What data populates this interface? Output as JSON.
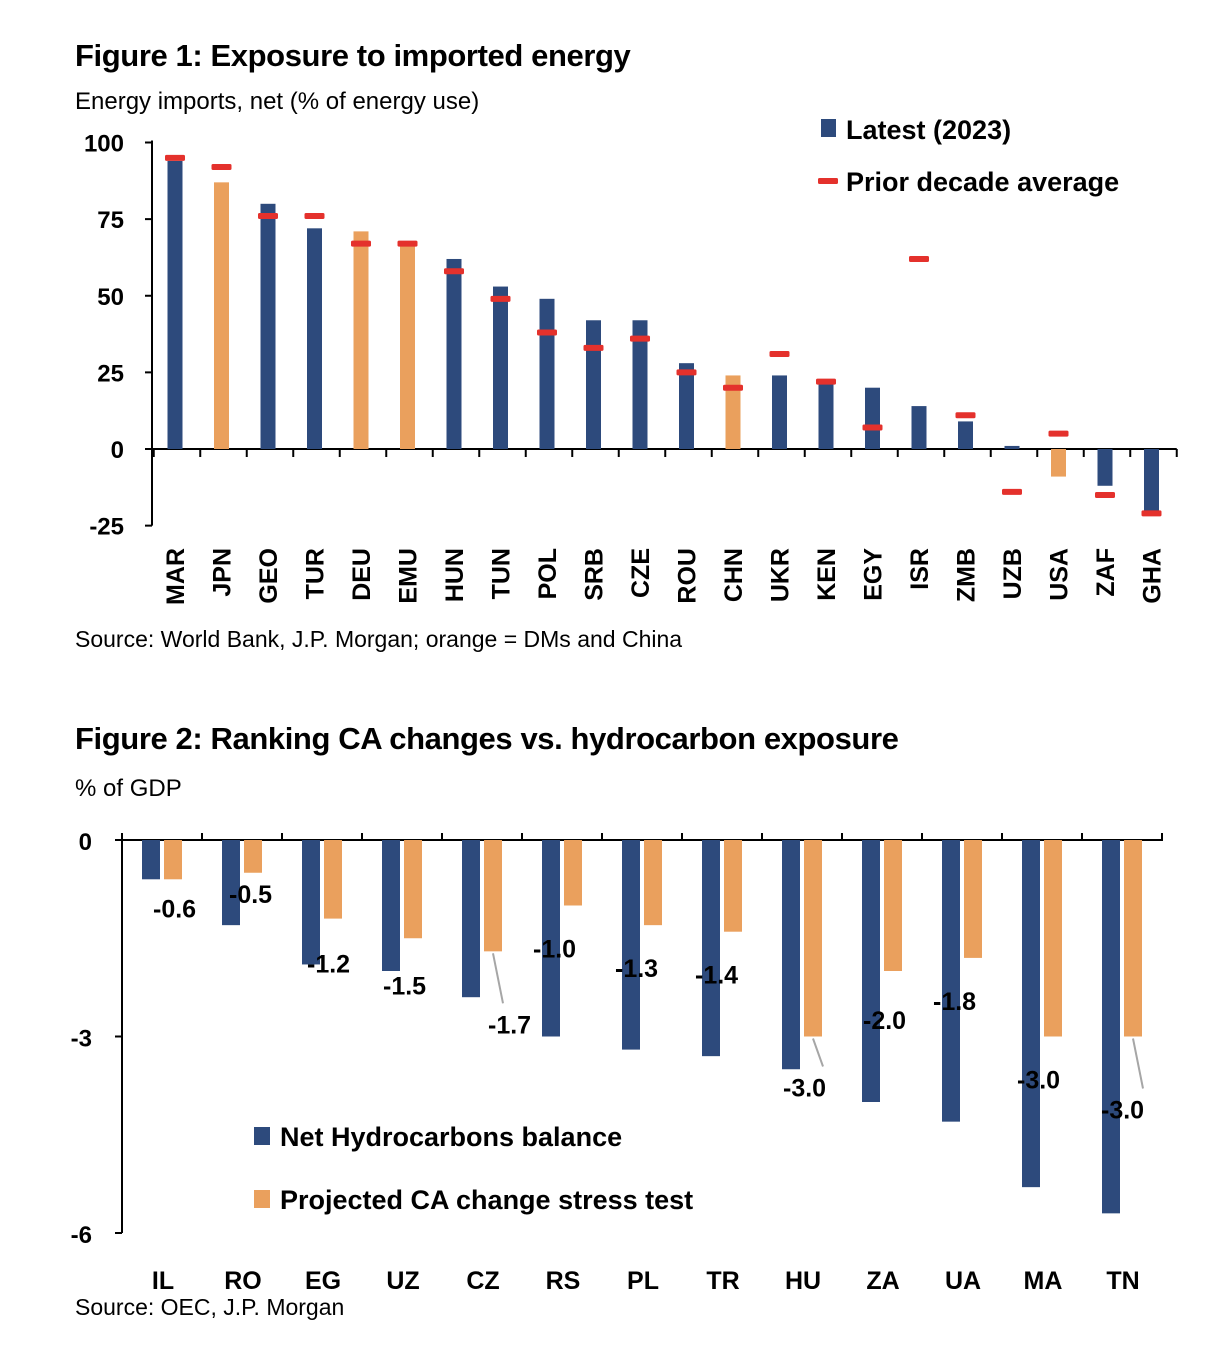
{
  "colors": {
    "navy": "#2d4a7c",
    "orange": "#eaa05d",
    "red": "#e4312c",
    "axis": "#000000",
    "leader": "#a6a6a6"
  },
  "fig1": {
    "title": "Figure 1: Exposure to imported energy",
    "subtitle": "Energy imports, net (% of energy use)",
    "source": "Source:  World Bank, J.P. Morgan; orange = DMs and China"
  },
  "fig2": {
    "title": "Figure 2: Ranking CA changes vs. hydrocarbon exposure",
    "subtitle": "% of GDP",
    "source": "Source: OEC, J.P. Morgan"
  },
  "chart_data": [
    {
      "type": "bar",
      "title": "Figure 1: Exposure to imported energy",
      "ylabel": "Energy imports, net (% of energy use)",
      "ylim": [
        -25,
        100
      ],
      "yticks": [
        100,
        75,
        50,
        25,
        0,
        -25
      ],
      "categories": [
        "MAR",
        "JPN",
        "GEO",
        "TUR",
        "DEU",
        "EMU",
        "HUN",
        "TUN",
        "POL",
        "SRB",
        "CZE",
        "ROU",
        "CHN",
        "UKR",
        "KEN",
        "EGY",
        "ISR",
        "ZMB",
        "UZB",
        "USA",
        "ZAF",
        "GHA"
      ],
      "highlight": [
        "JPN",
        "DEU",
        "EMU",
        "CHN",
        "USA"
      ],
      "series": [
        {
          "name": "Latest (2023)",
          "kind": "bar",
          "values": [
            94,
            87,
            80,
            72,
            71,
            67,
            62,
            53,
            49,
            42,
            42,
            28,
            24,
            24,
            22,
            20,
            14,
            9,
            1,
            -9,
            -12,
            -21
          ]
        },
        {
          "name": "Prior decade average",
          "kind": "marker",
          "values": [
            95,
            92,
            76,
            76,
            67,
            67,
            58,
            49,
            38,
            33,
            36,
            25,
            20,
            31,
            22,
            7,
            62,
            11,
            -14,
            5,
            -15,
            -21
          ]
        }
      ],
      "legend": "top-right",
      "source": "Source:  World Bank, J.P. Morgan; orange = DMs and China"
    },
    {
      "type": "bar",
      "title": "Figure 2: Ranking CA changes vs. hydrocarbon exposure",
      "ylabel": "% of GDP",
      "ylim": [
        -6,
        0
      ],
      "yticks": [
        "0",
        "-3",
        "-6"
      ],
      "categories": [
        "IL",
        "RO",
        "EG",
        "UZ",
        "CZ",
        "RS",
        "PL",
        "TR",
        "HU",
        "ZA",
        "UA",
        "MA",
        "TN"
      ],
      "series": [
        {
          "name": "Net Hydrocarbons balance",
          "values": [
            -0.6,
            -1.3,
            -1.9,
            -2.0,
            -2.4,
            -3.0,
            -3.2,
            -3.3,
            -3.5,
            -4.0,
            -4.3,
            -5.3,
            -5.7
          ]
        },
        {
          "name": "Projected CA change stress test",
          "values": [
            -0.6,
            -0.5,
            -1.2,
            -1.5,
            -1.7,
            -1.0,
            -1.3,
            -1.4,
            -3.0,
            -2.0,
            -1.8,
            -3.0,
            -3.0
          ]
        }
      ],
      "data_labels": [
        "-0.6",
        "-0.5",
        "-1.2",
        "-1.5",
        "-1.7",
        "-1.0",
        "-1.3",
        "-1.4",
        "-3.0",
        "-2.0",
        "-1.8",
        "-3.0",
        "-3.0"
      ],
      "legend": "bottom-left",
      "source": "Source: OEC, J.P. Morgan"
    }
  ]
}
